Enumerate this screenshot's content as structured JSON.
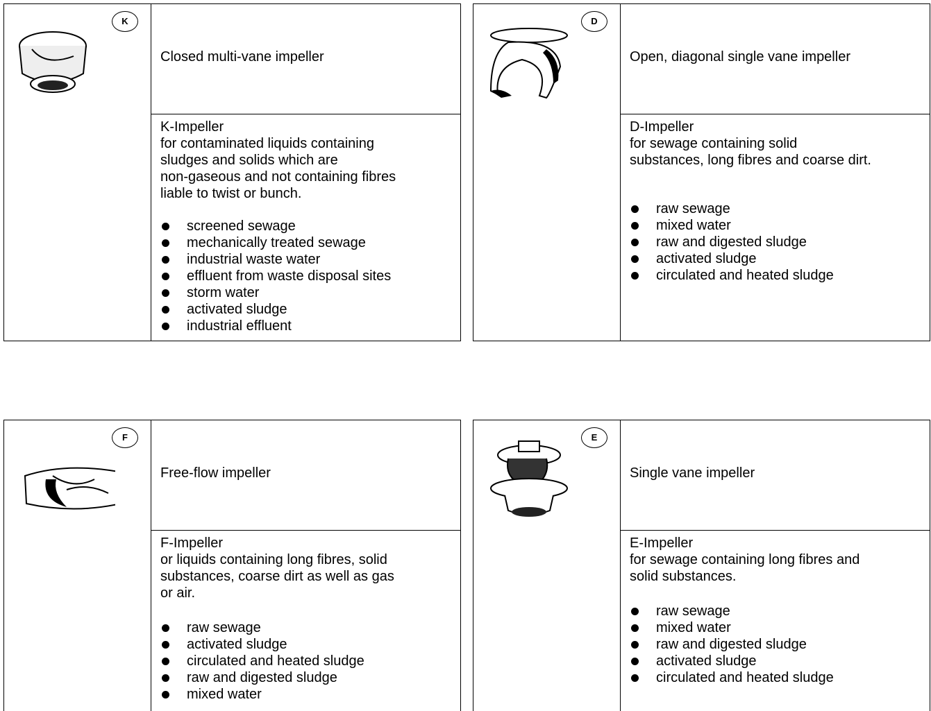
{
  "panels": [
    {
      "badge": "K",
      "title": "Closed multi-vane impeller",
      "name": "K-Impeller",
      "description": [
        "for contaminated liquids containing",
        "sludges and solids which are",
        "non-gaseous and not containing fibres",
        "liable to twist or bunch."
      ],
      "items": [
        "screened sewage",
        "mechanically treated sewage",
        "industrial waste water",
        "effluent from waste disposal sites",
        "storm water",
        "activated sludge",
        "industrial effluent"
      ]
    },
    {
      "badge": "D",
      "title": "Open, diagonal single vane impeller",
      "name": "D-Impeller",
      "description": [
        "for sewage containing solid",
        "substances, long fibres and coarse dirt."
      ],
      "items": [
        "raw sewage",
        "mixed water",
        "raw and digested sludge",
        "activated sludge",
        "circulated and heated sludge"
      ]
    },
    {
      "badge": "F",
      "title": "Free-flow impeller",
      "name": "F-Impeller",
      "description": [
        "or liquids containing long fibres, solid",
        "substances, coarse dirt as well as gas",
        "or air."
      ],
      "items": [
        "raw sewage",
        "activated sludge",
        "circulated and heated sludge",
        "raw and digested sludge",
        "mixed water"
      ]
    },
    {
      "badge": "E",
      "title": "Single vane impeller",
      "name": "E-Impeller",
      "description": [
        "for sewage containing long fibres and",
        "solid substances."
      ],
      "items": [
        "raw sewage",
        "mixed water",
        "raw and digested sludge",
        "activated sludge",
        "circulated and heated sludge"
      ]
    }
  ]
}
